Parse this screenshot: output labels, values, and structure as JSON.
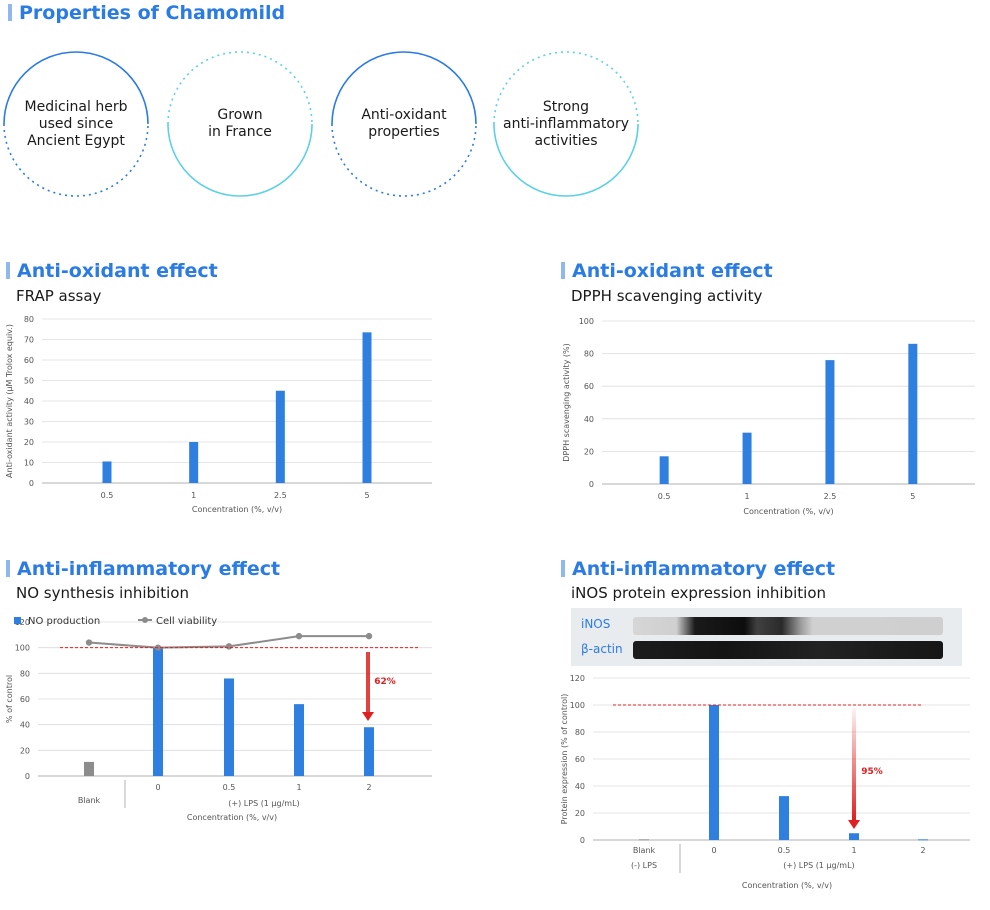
{
  "header": {
    "title": "Properties of Chamomild"
  },
  "properties": [
    {
      "label": "Medicinal herb\nused since\nAncient Egypt",
      "style": "dark-solid-top-dotted-bottom"
    },
    {
      "label": "Grown\nin France",
      "style": "light-dotted-top-solid-bottom"
    },
    {
      "label": "Anti-oxidant\nproperties",
      "style": "dark-solid-top-dotted-bottom"
    },
    {
      "label": "Strong\nanti-inflammatory\nactivities",
      "style": "light-dotted-top-solid-bottom"
    }
  ],
  "colors": {
    "accent": "#2a7be4",
    "bar": "#2f7fe0",
    "gray": "#8c8c8c",
    "red": "#e02020",
    "circle_dark": "#2a7be4",
    "circle_light": "#5bd0e6"
  },
  "sections": {
    "frap": {
      "title": "Anti-oxidant effect",
      "subtitle": "FRAP assay"
    },
    "dpph": {
      "title": "Anti-oxidant effect",
      "subtitle": "DPPH scavenging activity"
    },
    "no": {
      "title": "Anti-inflammatory effect",
      "subtitle": "NO synthesis inhibition"
    },
    "inos": {
      "title": "Anti-inflammatory effect",
      "subtitle": "iNOS protein expression inhibition"
    }
  },
  "blot": {
    "rows": [
      {
        "label": "iNOS"
      },
      {
        "label": "β-actin"
      }
    ]
  },
  "chart_data": [
    {
      "type": "bar",
      "categories": [
        "0.5",
        "1",
        "2.5",
        "5"
      ],
      "values": [
        10.5,
        20,
        45,
        73.5
      ],
      "xlabel": "Concentration (%, v/v)",
      "ylabel": "Anti-oxidant activity (µM Trolox equiv.)",
      "ylim": [
        0,
        80
      ],
      "yticks": [
        "0",
        "10",
        "20",
        "30",
        "40",
        "50",
        "60",
        "70",
        "80"
      ],
      "grid": true
    },
    {
      "type": "bar",
      "categories": [
        "0.5",
        "1",
        "2.5",
        "5"
      ],
      "values": [
        17,
        31.5,
        76,
        86
      ],
      "xlabel": "Concentration (%, v/v)",
      "ylabel": "DPPH scavenging activity (%)",
      "ylim": [
        0,
        100
      ],
      "yticks": [
        "0",
        "20",
        "40",
        "60",
        "80",
        "100"
      ],
      "grid": true
    },
    {
      "type": "bar",
      "categories": [
        "Blank",
        "0",
        "0.5",
        "1",
        "2"
      ],
      "group_label": "(+) LPS (1 µg/mL)",
      "series": [
        {
          "name": "NO production",
          "type": "bar",
          "values": [
            11,
            100,
            76,
            56,
            38
          ]
        },
        {
          "name": "Cell viability",
          "type": "line",
          "values": [
            104,
            100,
            101,
            109,
            109
          ]
        }
      ],
      "reference_line": 100,
      "annotation": {
        "text": "62%",
        "category": "2"
      },
      "xlabel": "Concentration (%, v/v)",
      "ylabel": "% of control",
      "ylim": [
        0,
        120
      ],
      "yticks": [
        "0",
        "20",
        "40",
        "60",
        "80",
        "100",
        "120"
      ],
      "legend": "top-left",
      "grid": true
    },
    {
      "type": "bar",
      "categories": [
        "Blank",
        "0",
        "0.5",
        "1",
        "2"
      ],
      "blank_sublabel": "(-) LPS",
      "group_label": "(+) LPS (1 µg/mL)",
      "values": [
        0.5,
        100,
        32.5,
        5,
        0.5
      ],
      "reference_line": 100,
      "annotation": {
        "text": "95%",
        "category": "1"
      },
      "xlabel": "Concentration (%, v/v)",
      "ylabel": "Protein expression (% of control)",
      "ylim": [
        0,
        120
      ],
      "yticks": [
        "0",
        "20",
        "40",
        "60",
        "80",
        "100",
        "120"
      ],
      "grid": true
    }
  ]
}
